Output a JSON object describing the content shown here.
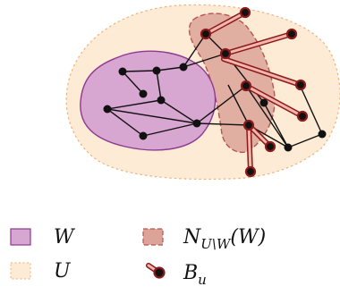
{
  "colors": {
    "universe_fill": "#fdebd6",
    "universe_stroke": "#f0b27a",
    "w_fill": "#d7a6d1",
    "w_stroke": "#8e3a8e",
    "neighborhood_fill": "#dca399",
    "neighborhood_stroke": "#b5564f",
    "edge": "#111111",
    "node": "#111111",
    "b_stroke": "#8b1a1a",
    "b_fill": "#f2b6ad"
  },
  "legend": {
    "w": {
      "label": "W",
      "icon": "purple-square-icon"
    },
    "u": {
      "label": "U",
      "icon": "dotted-orange-square-icon"
    },
    "n": {
      "label_main": "N",
      "label_sub": "U\\W",
      "label_arg": "(W)",
      "icon": "dashed-brown-square-icon"
    },
    "b": {
      "label_main": "B",
      "label_sub": "u",
      "icon": "lollipop-icon"
    }
  }
}
